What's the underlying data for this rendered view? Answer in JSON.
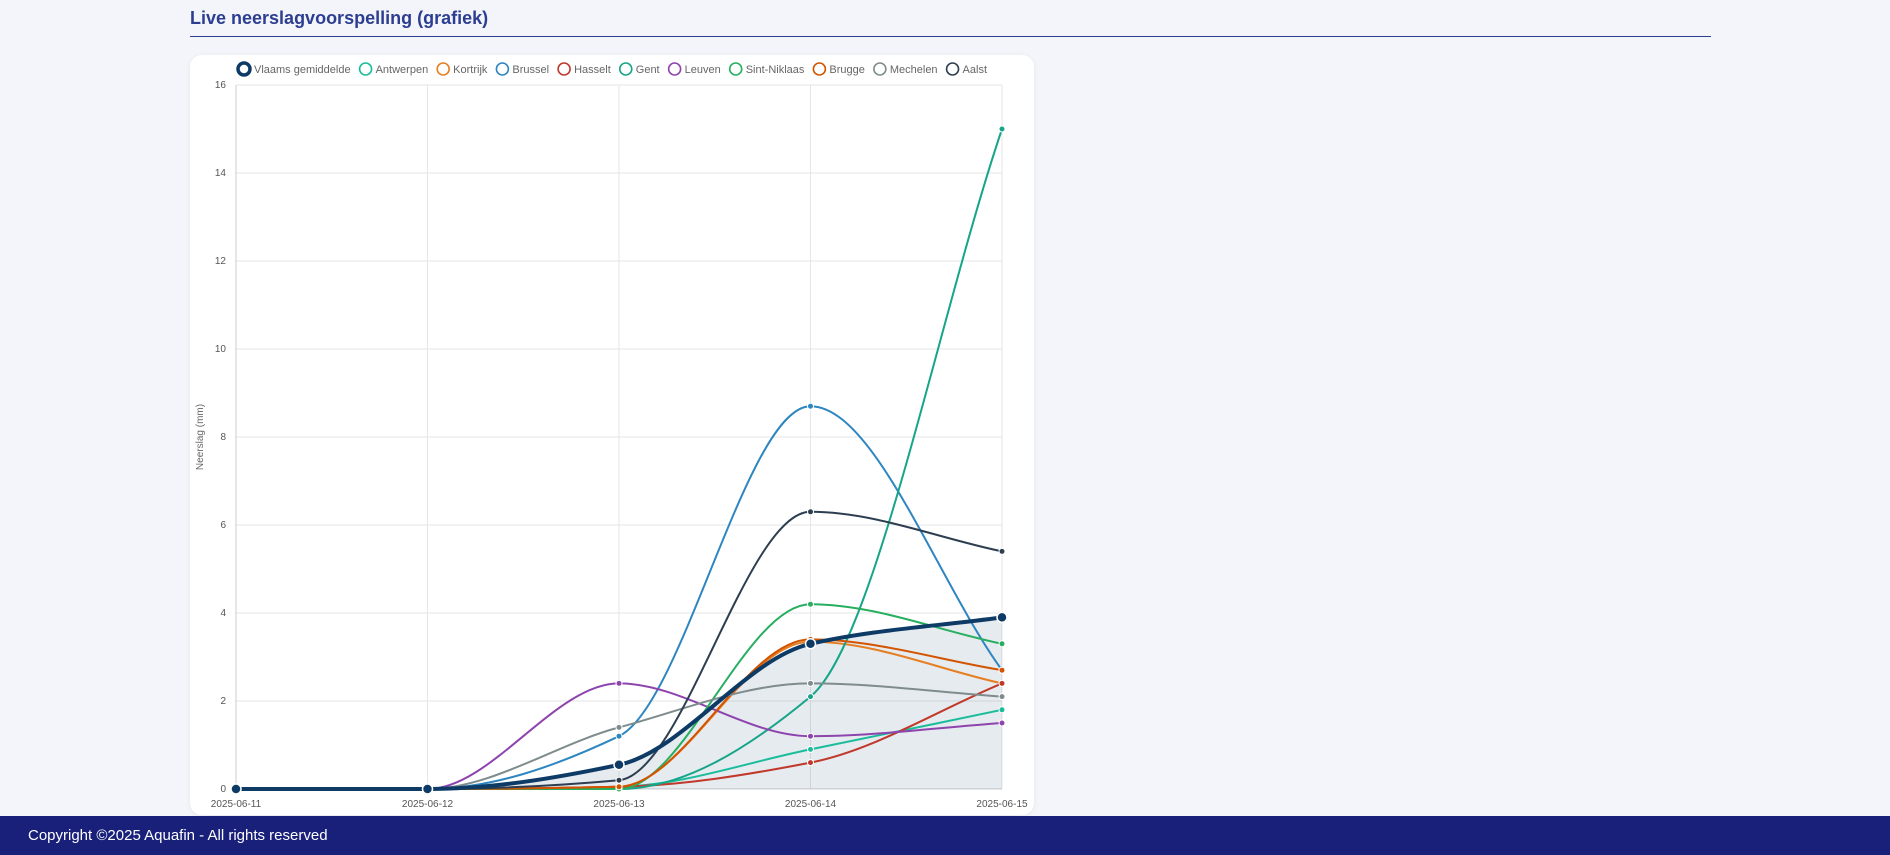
{
  "page": {
    "section_title": "Live neerslagvoorspelling (grafiek)",
    "footer_text": "Copyright ©2025 Aquafin - All rights reserved"
  },
  "chart_data": {
    "type": "line",
    "title": "",
    "xlabel": "",
    "ylabel": "Neerslag (mm)",
    "x": [
      "2025-06-11",
      "2025-06-12",
      "2025-06-13",
      "2025-06-14",
      "2025-06-15"
    ],
    "ylim": [
      0,
      16
    ],
    "yticks": [
      0,
      2,
      4,
      6,
      8,
      10,
      12,
      14,
      16
    ],
    "grid": true,
    "legend_position": "top",
    "series": [
      {
        "name": "Vlaams gemiddelde",
        "color": "#0d3b66",
        "emphasis": true,
        "filled": true,
        "values": [
          0,
          0,
          0.55,
          3.3,
          3.9
        ]
      },
      {
        "name": "Antwerpen",
        "color": "#1abc9c",
        "values": [
          0,
          0,
          0.05,
          0.9,
          1.8
        ]
      },
      {
        "name": "Kortrijk",
        "color": "#e67e22",
        "values": [
          0,
          0,
          0.05,
          3.35,
          2.4
        ]
      },
      {
        "name": "Brussel",
        "color": "#2e86c1",
        "values": [
          0,
          0,
          1.2,
          8.7,
          2.7
        ]
      },
      {
        "name": "Hasselt",
        "color": "#c0392b",
        "values": [
          0,
          0,
          0.05,
          0.6,
          2.4
        ]
      },
      {
        "name": "Gent",
        "color": "#17a589",
        "values": [
          0,
          0,
          0,
          2.1,
          15
        ]
      },
      {
        "name": "Leuven",
        "color": "#8e44ad",
        "values": [
          0,
          0,
          2.4,
          1.2,
          1.5
        ]
      },
      {
        "name": "Sint-Niklaas",
        "color": "#27ae60",
        "values": [
          0,
          0,
          0,
          4.2,
          3.3
        ]
      },
      {
        "name": "Brugge",
        "color": "#d35400",
        "values": [
          0,
          0,
          0.05,
          3.4,
          2.7
        ]
      },
      {
        "name": "Mechelen",
        "color": "#7f8c8d",
        "values": [
          0,
          0,
          1.4,
          2.4,
          2.1
        ]
      },
      {
        "name": "Aalst",
        "color": "#2c3e50",
        "values": [
          0,
          0,
          0.2,
          6.3,
          5.4
        ]
      }
    ]
  }
}
